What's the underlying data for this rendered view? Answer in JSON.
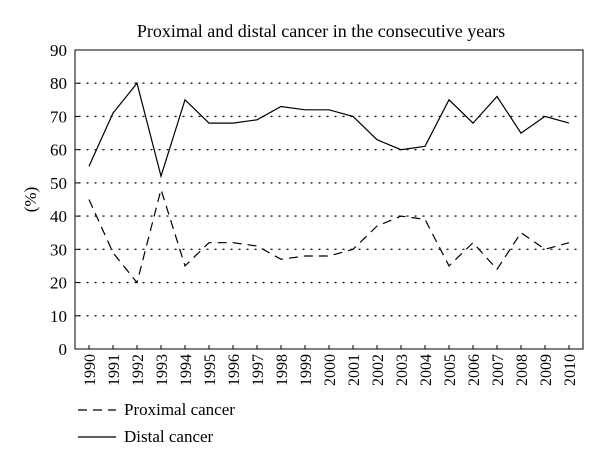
{
  "chart_data": {
    "type": "line",
    "title": "Proximal and distal cancer in the consecutive years",
    "xlabel": "",
    "ylabel": "(%)",
    "ylim": [
      0,
      90
    ],
    "yticks": [
      0,
      10,
      20,
      30,
      40,
      50,
      60,
      70,
      80,
      90
    ],
    "grid": true,
    "legend_position": "bottom-left",
    "x": [
      "1990",
      "1991",
      "1992",
      "1993",
      "1994",
      "1995",
      "1996",
      "1997",
      "1998",
      "1999",
      "2000",
      "2001",
      "2002",
      "2003",
      "2004",
      "2005",
      "2006",
      "2007",
      "2008",
      "2009",
      "2010"
    ],
    "series": [
      {
        "name": "Proximal cancer",
        "style": "dashed",
        "values": [
          45,
          29,
          20,
          48,
          25,
          32,
          32,
          31,
          27,
          28,
          28,
          30,
          37,
          40,
          39,
          25,
          32,
          24,
          35,
          30,
          32
        ]
      },
      {
        "name": "Distal cancer",
        "style": "solid",
        "values": [
          55,
          71,
          80,
          52,
          75,
          68,
          68,
          69,
          73,
          72,
          72,
          70,
          63,
          60,
          61,
          75,
          68,
          76,
          65,
          70,
          68
        ]
      }
    ]
  }
}
